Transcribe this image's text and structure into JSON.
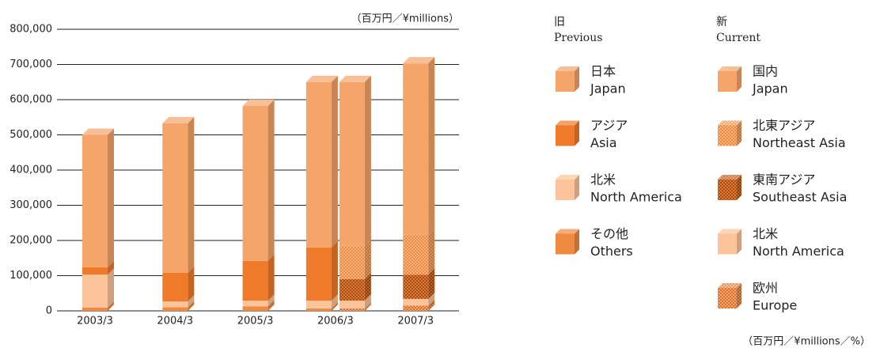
{
  "chart_data": {
    "type": "stacked_bar_3d",
    "unit_label": "（百万円／¥millions）",
    "footnote": "（百万円／¥millions／%）",
    "categories": [
      "2003/3",
      "2004/3",
      "2005/3",
      "2006/3",
      "2007/3"
    ],
    "ylim": [
      0,
      800000
    ],
    "yticks": [
      0,
      {
        "value": 100000,
        "label": "100,000"
      },
      {
        "value": 200000,
        "label": "200,000"
      },
      {
        "value": 300000,
        "label": "300,000"
      },
      {
        "value": 400000,
        "label": "400,000"
      },
      {
        "value": 500000,
        "label": "500,000"
      },
      {
        "value": 600000,
        "label": "600,000"
      },
      {
        "value": 700000,
        "label": "700,000"
      },
      {
        "value": 800000,
        "label": "800,000"
      }
    ],
    "grid": true,
    "groups": [
      {
        "title": "旧",
        "title_en": "Previous",
        "series": [
          {
            "name": "日本",
            "name_en": "Japan",
            "color": "#f5a46a",
            "values": [
              376000,
              425000,
              440000,
              470000,
              null
            ]
          },
          {
            "name": "アジア",
            "name_en": "Asia",
            "color": "#ee7a2a",
            "values": [
              21000,
              81000,
              113000,
              151000,
              null
            ]
          },
          {
            "name": "北米",
            "name_en": "North America",
            "color": "#fcc49a",
            "values": [
              94000,
              17000,
              16000,
              22000,
              null
            ]
          },
          {
            "name": "その他",
            "name_en": "Others",
            "color": "#f08a40",
            "values": [
              9000,
              10000,
              13000,
              7000,
              null
            ]
          }
        ]
      },
      {
        "title": "新",
        "title_en": "Current",
        "series": [
          {
            "name": "国内",
            "name_en": "Japan",
            "color": "#f5a46a",
            "values": [
              null,
              null,
              null,
              466000,
              487000
            ]
          },
          {
            "name": "北東アジア",
            "name_en": "Northeast Asia",
            "color": "#f8b27c",
            "pattern": "dots",
            "dot_color": "#e0701e",
            "values": [
              null,
              null,
              null,
              94000,
              113000
            ]
          },
          {
            "name": "東南アジア",
            "name_en": "Southeast Asia",
            "color": "#e07a30",
            "pattern": "dots",
            "dot_color": "#7a300c",
            "values": [
              null,
              null,
              null,
              61000,
              69000
            ]
          },
          {
            "name": "北米",
            "name_en": "North America",
            "color": "#fcc49a",
            "values": [
              null,
              null,
              null,
              22000,
              19000
            ]
          },
          {
            "name": "欧州",
            "name_en": "Europe",
            "color": "#f5a46a",
            "pattern": "dots",
            "dot_color": "#c0500e",
            "values": [
              null,
              null,
              null,
              7000,
              15000
            ]
          }
        ]
      }
    ]
  }
}
